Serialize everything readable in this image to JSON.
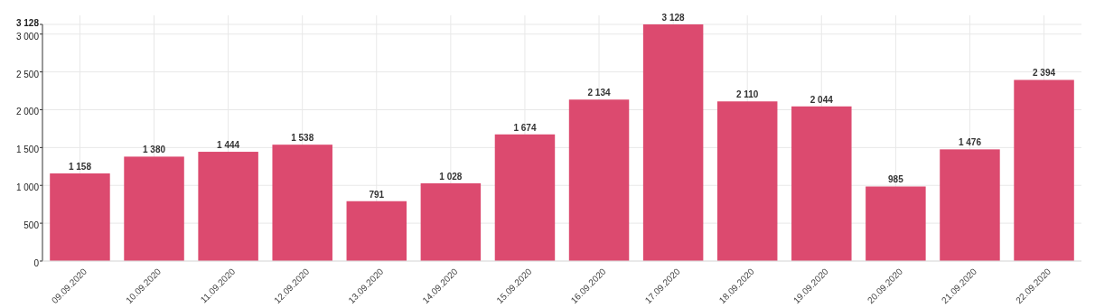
{
  "chart_data": {
    "type": "bar",
    "categories": [
      "09.09.2020",
      "10.09.2020",
      "11.09.2020",
      "12.09.2020",
      "13.09.2020",
      "14.09.2020",
      "15.09.2020",
      "16.09.2020",
      "17.09.2020",
      "18.09.2020",
      "19.09.2020",
      "20.09.2020",
      "21.09.2020",
      "22.09.2020"
    ],
    "values": [
      1158,
      1380,
      1444,
      1538,
      791,
      1028,
      1674,
      2134,
      3128,
      2110,
      2044,
      985,
      1476,
      2394
    ],
    "value_labels": [
      "1 158",
      "1 380",
      "1 444",
      "1 538",
      "791",
      "1 028",
      "1 674",
      "2 134",
      "3 128",
      "2 110",
      "2 044",
      "985",
      "1 476",
      "2 394"
    ],
    "color": "#dc4a6f",
    "ylim": [
      0,
      3128
    ],
    "yticks": [
      0,
      500,
      {
        "value": 1000,
        "label": "1 000"
      },
      {
        "value": 1500,
        "label": "1 500"
      },
      {
        "value": 2000,
        "label": "2 000"
      },
      {
        "value": 2500,
        "label": "2 500"
      },
      {
        "value": 3000,
        "label": "3 000"
      },
      {
        "value": 3128,
        "label": "3 128"
      }
    ],
    "grid": true
  }
}
